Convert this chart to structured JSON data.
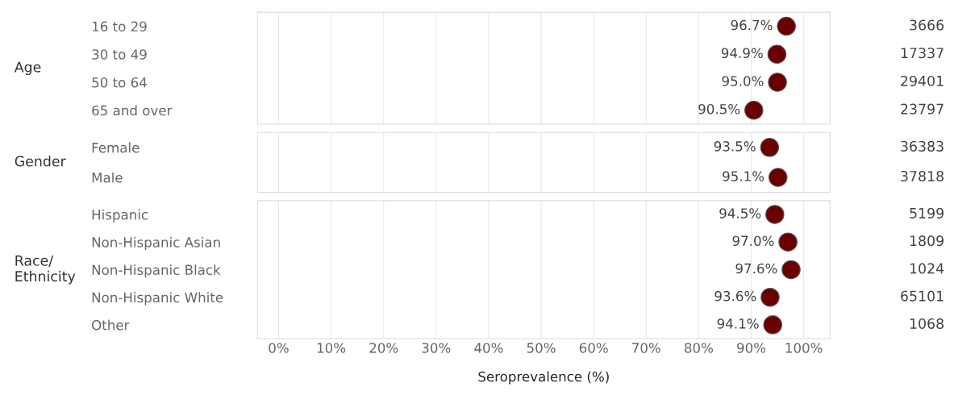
{
  "chart_data": [
    {
      "type": "scatter",
      "ylabel": "Age",
      "categories": [
        "16 to 29",
        "30 to 49",
        "50 to 64",
        "65 and over"
      ],
      "orientation": "horizontal",
      "values": [
        96.7,
        94.9,
        95.0,
        90.5
      ],
      "color": "#6b0000",
      "value_labels": [
        "96.7%",
        "94.9%",
        "95.0%",
        "90.5%"
      ],
      "annotations": [
        "3666",
        "17337",
        "29401",
        "23797"
      ],
      "xlim": [
        -4,
        105
      ],
      "tick_labels": "y",
      "grid": "x",
      "marker": "circle"
    },
    {
      "type": "scatter",
      "ylabel": "Gender",
      "categories": [
        "Female",
        "Male"
      ],
      "orientation": "horizontal",
      "values": [
        93.5,
        95.1
      ],
      "color": "#6b0000",
      "value_labels": [
        "93.5%",
        "95.1%"
      ],
      "annotations": [
        "36383",
        "37818"
      ],
      "xlim": [
        -4,
        105
      ],
      "tick_labels": "y",
      "grid": "x",
      "marker": "circle"
    },
    {
      "type": "scatter",
      "ylabel": "Race/\nEthnicity",
      "xlabel": "Seroprevalence (%)",
      "categories": [
        "Hispanic",
        "Non-Hispanic Asian",
        "Non-Hispanic Black",
        "Non-Hispanic White",
        "Other"
      ],
      "orientation": "horizontal",
      "values": [
        94.5,
        97.0,
        97.6,
        93.6,
        94.1
      ],
      "color": "#6b0000",
      "value_labels": [
        "94.5%",
        "97.0%",
        "97.6%",
        "93.6%",
        "94.1%"
      ],
      "annotations": [
        "5199",
        "1809",
        "1024",
        "65101",
        "1068"
      ],
      "xlim": [
        -4,
        105
      ],
      "xticks": [
        {
          "value": 0,
          "label": "0%"
        },
        {
          "value": 10,
          "label": "10%"
        },
        {
          "value": 20,
          "label": "20%"
        },
        {
          "value": 30,
          "label": "30%"
        },
        {
          "value": 40,
          "label": "40%"
        },
        {
          "value": 50,
          "label": "50%"
        },
        {
          "value": 60,
          "label": "60%"
        },
        {
          "value": 70,
          "label": "70%"
        },
        {
          "value": 80,
          "label": "80%"
        },
        {
          "value": 90,
          "label": "90%"
        },
        {
          "value": 100,
          "label": "100%"
        }
      ],
      "grid": "x",
      "marker": "circle"
    }
  ]
}
